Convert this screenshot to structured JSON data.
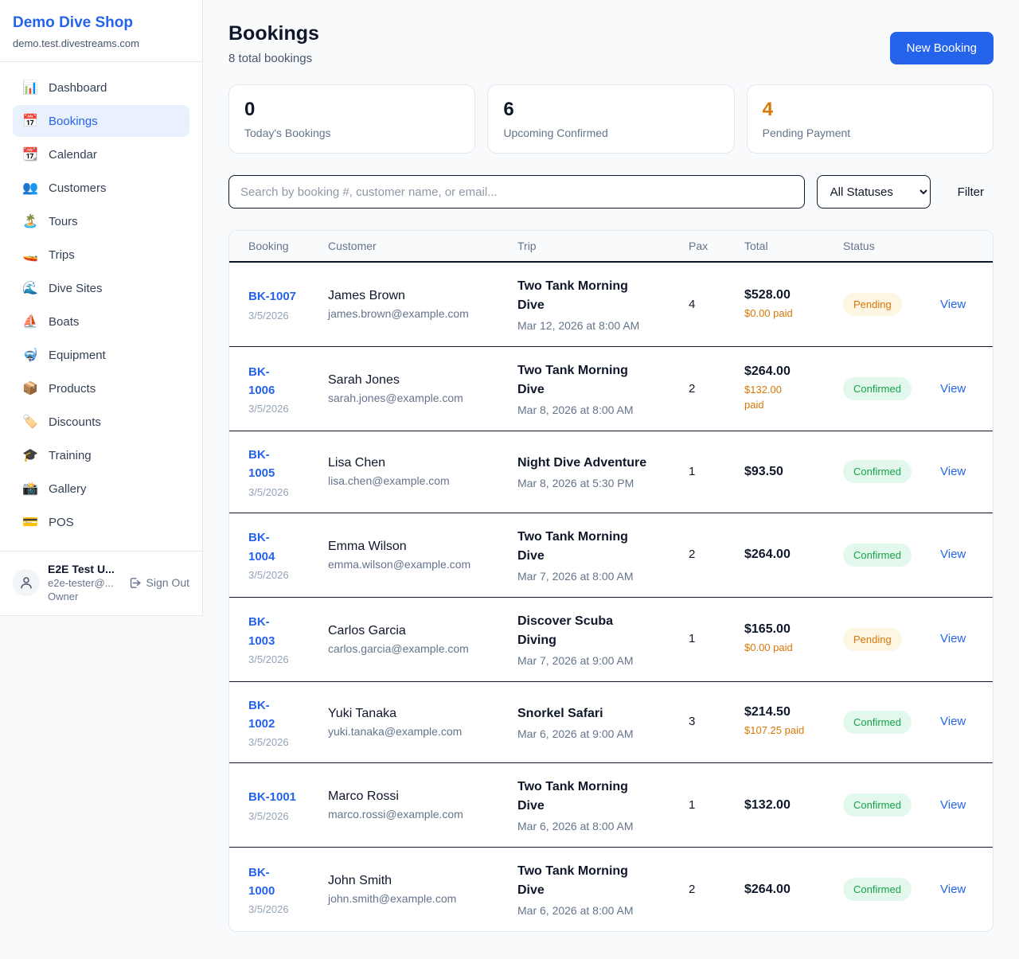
{
  "colors": {
    "accent_blue": "#2563eb",
    "page_bg": "#f8fafc",
    "orange": "#d97706",
    "green": "#16a34a",
    "pending_badge_bg": "#fdf6e3",
    "confirmed_badge_bg": "#e3f8ec",
    "dark_text": "#0f172a",
    "muted_text": "#64748b"
  },
  "sidebar": {
    "brand": {
      "name": "Demo Dive Shop",
      "domain": "demo.test.divestreams.com"
    },
    "nav": [
      {
        "label": "Dashboard",
        "icon": "📊",
        "icon_name": "bar-chart-icon",
        "active": false
      },
      {
        "label": "Bookings",
        "icon": "📅",
        "icon_name": "calendar-icon",
        "active": true
      },
      {
        "label": "Calendar",
        "icon": "📆",
        "icon_name": "tear-off-calendar-icon",
        "active": false
      },
      {
        "label": "Customers",
        "icon": "👥",
        "icon_name": "people-icon",
        "active": false
      },
      {
        "label": "Tours",
        "icon": "🏝️",
        "icon_name": "island-icon",
        "active": false
      },
      {
        "label": "Trips",
        "icon": "🚤",
        "icon_name": "speedboat-icon",
        "active": false
      },
      {
        "label": "Dive Sites",
        "icon": "🌊",
        "icon_name": "wave-icon",
        "active": false
      },
      {
        "label": "Boats",
        "icon": "⛵",
        "icon_name": "sailboat-icon",
        "active": false
      },
      {
        "label": "Equipment",
        "icon": "🤿",
        "icon_name": "diving-mask-icon",
        "active": false
      },
      {
        "label": "Products",
        "icon": "📦",
        "icon_name": "package-icon",
        "active": false
      },
      {
        "label": "Discounts",
        "icon": "🏷️",
        "icon_name": "tag-icon",
        "active": false
      },
      {
        "label": "Training",
        "icon": "🎓",
        "icon_name": "graduation-cap-icon",
        "active": false
      },
      {
        "label": "Gallery",
        "icon": "📸",
        "icon_name": "camera-icon",
        "active": false
      },
      {
        "label": "POS",
        "icon": "💳",
        "icon_name": "credit-card-icon",
        "active": false
      }
    ],
    "user": {
      "name": "E2E Test U...",
      "email": "e2e-tester@...",
      "role": "Owner",
      "sign_out_label": "Sign Out"
    }
  },
  "header": {
    "title": "Bookings",
    "subtitle": "8 total bookings",
    "new_booking_label": "New Booking"
  },
  "stats": [
    {
      "value": "0",
      "label": "Today's Bookings",
      "value_color": "#0f172a"
    },
    {
      "value": "6",
      "label": "Upcoming Confirmed",
      "value_color": "#0f172a"
    },
    {
      "value": "4",
      "label": "Pending Payment",
      "value_color": "#d97706"
    }
  ],
  "filters": {
    "search_placeholder": "Search by booking #, customer name, or email...",
    "status_selected": "All Statuses",
    "filter_label": "Filter"
  },
  "table": {
    "columns": [
      "Booking",
      "Customer",
      "Trip",
      "Pax",
      "Total",
      "Status"
    ],
    "view_label": "View",
    "rows": [
      {
        "id": "BK-1007",
        "date": "3/5/2026",
        "customer": "James Brown",
        "email": "james.brown@example.com",
        "trip": "Two Tank Morning\nDive",
        "trip_time": "Mar 12, 2026 at 8:00 AM",
        "pax": "4",
        "total": "$528.00",
        "paid": "$0.00 paid",
        "status": "Pending"
      },
      {
        "id": "BK-\n1006",
        "date": "3/5/2026",
        "customer": "Sarah Jones",
        "email": "sarah.jones@example.com",
        "trip": "Two Tank Morning\nDive",
        "trip_time": "Mar 8, 2026 at 8:00 AM",
        "pax": "2",
        "total": "$264.00",
        "paid": "$132.00\npaid",
        "status": "Confirmed"
      },
      {
        "id": "BK-\n1005",
        "date": "3/5/2026",
        "customer": "Lisa Chen",
        "email": "lisa.chen@example.com",
        "trip": "Night Dive Adventure",
        "trip_time": "Mar 8, 2026 at 5:30 PM",
        "pax": "1",
        "total": "$93.50",
        "paid": "",
        "status": "Confirmed"
      },
      {
        "id": "BK-\n1004",
        "date": "3/5/2026",
        "customer": "Emma Wilson",
        "email": "emma.wilson@example.com",
        "trip": "Two Tank Morning\nDive",
        "trip_time": "Mar 7, 2026 at 8:00 AM",
        "pax": "2",
        "total": "$264.00",
        "paid": "",
        "status": "Confirmed"
      },
      {
        "id": "BK-\n1003",
        "date": "3/5/2026",
        "customer": "Carlos Garcia",
        "email": "carlos.garcia@example.com",
        "trip": "Discover Scuba\nDiving",
        "trip_time": "Mar 7, 2026 at 9:00 AM",
        "pax": "1",
        "total": "$165.00",
        "paid": "$0.00 paid",
        "status": "Pending"
      },
      {
        "id": "BK-\n1002",
        "date": "3/5/2026",
        "customer": "Yuki Tanaka",
        "email": "yuki.tanaka@example.com",
        "trip": "Snorkel Safari",
        "trip_time": "Mar 6, 2026 at 9:00 AM",
        "pax": "3",
        "total": "$214.50",
        "paid": "$107.25 paid",
        "status": "Confirmed"
      },
      {
        "id": "BK-1001",
        "date": "3/5/2026",
        "customer": "Marco Rossi",
        "email": "marco.rossi@example.com",
        "trip": "Two Tank Morning\nDive",
        "trip_time": "Mar 6, 2026 at 8:00 AM",
        "pax": "1",
        "total": "$132.00",
        "paid": "",
        "status": "Confirmed"
      },
      {
        "id": "BK-\n1000",
        "date": "3/5/2026",
        "customer": "John Smith",
        "email": "john.smith@example.com",
        "trip": "Two Tank Morning\nDive",
        "trip_time": "Mar 6, 2026 at 8:00 AM",
        "pax": "2",
        "total": "$264.00",
        "paid": "",
        "status": "Confirmed"
      }
    ]
  }
}
